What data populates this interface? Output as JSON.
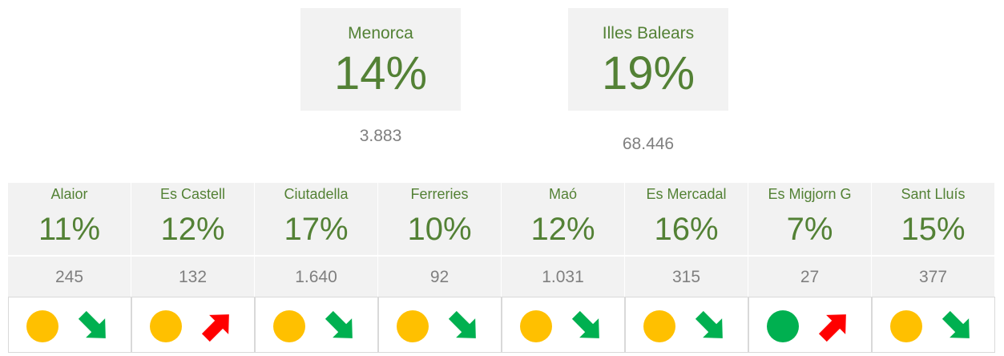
{
  "summary": [
    {
      "name": "Menorca",
      "percent": "14%",
      "count": "3.883"
    },
    {
      "name": "Illes Balears",
      "percent": "19%",
      "count": "68.446"
    }
  ],
  "municipalities": [
    {
      "name": "Alaior",
      "percent": "11%",
      "count": "245",
      "status_color": "#ffc000",
      "trend": "down",
      "trend_color": "#00b050"
    },
    {
      "name": "Es Castell",
      "percent": "12%",
      "count": "132",
      "status_color": "#ffc000",
      "trend": "up",
      "trend_color": "#ff0000"
    },
    {
      "name": "Ciutadella",
      "percent": "17%",
      "count": "1.640",
      "status_color": "#ffc000",
      "trend": "down",
      "trend_color": "#00b050"
    },
    {
      "name": "Ferreries",
      "percent": "10%",
      "count": "92",
      "status_color": "#ffc000",
      "trend": "down",
      "trend_color": "#00b050"
    },
    {
      "name": "Maó",
      "percent": "12%",
      "count": "1.031",
      "status_color": "#ffc000",
      "trend": "down",
      "trend_color": "#00b050"
    },
    {
      "name": "Es Mercadal",
      "percent": "16%",
      "count": "315",
      "status_color": "#ffc000",
      "trend": "down",
      "trend_color": "#00b050"
    },
    {
      "name": "Es Migjorn G",
      "percent": "7%",
      "count": "27",
      "status_color": "#00b050",
      "trend": "up",
      "trend_color": "#ff0000"
    },
    {
      "name": "Sant Lluís",
      "percent": "15%",
      "count": "377",
      "status_color": "#ffc000",
      "trend": "down",
      "trend_color": "#00b050"
    }
  ]
}
